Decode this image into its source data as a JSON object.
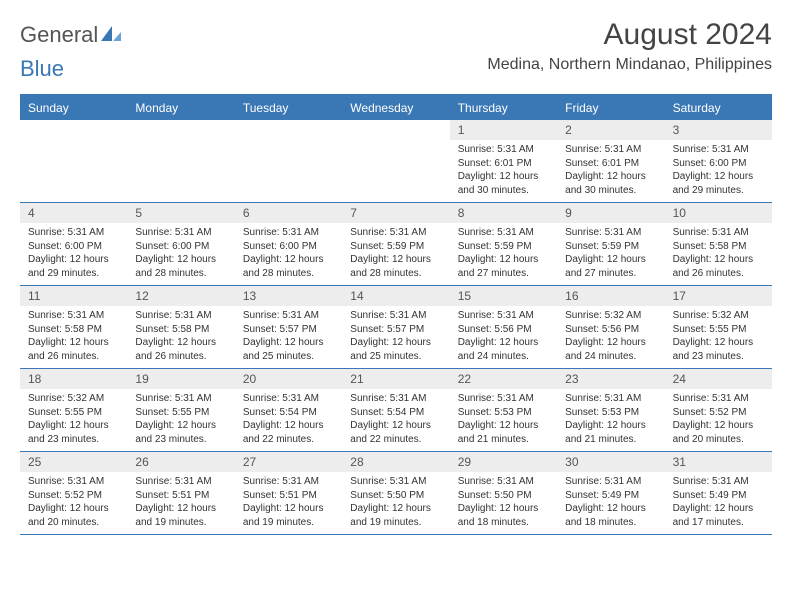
{
  "logo": {
    "word1": "General",
    "word2": "Blue"
  },
  "title": "August 2024",
  "location": "Medina, Northern Mindanao, Philippines",
  "days_of_week": [
    "Sunday",
    "Monday",
    "Tuesday",
    "Wednesday",
    "Thursday",
    "Friday",
    "Saturday"
  ],
  "colors": {
    "accent": "#3a78b5",
    "header_text": "#ffffff",
    "daynum_bg": "#ededed",
    "body_text": "#333333"
  },
  "weeks": [
    [
      {
        "empty": true
      },
      {
        "empty": true
      },
      {
        "empty": true
      },
      {
        "empty": true
      },
      {
        "day": "1",
        "sunrise": "Sunrise: 5:31 AM",
        "sunset": "Sunset: 6:01 PM",
        "daylight": "Daylight: 12 hours and 30 minutes."
      },
      {
        "day": "2",
        "sunrise": "Sunrise: 5:31 AM",
        "sunset": "Sunset: 6:01 PM",
        "daylight": "Daylight: 12 hours and 30 minutes."
      },
      {
        "day": "3",
        "sunrise": "Sunrise: 5:31 AM",
        "sunset": "Sunset: 6:00 PM",
        "daylight": "Daylight: 12 hours and 29 minutes."
      }
    ],
    [
      {
        "day": "4",
        "sunrise": "Sunrise: 5:31 AM",
        "sunset": "Sunset: 6:00 PM",
        "daylight": "Daylight: 12 hours and 29 minutes."
      },
      {
        "day": "5",
        "sunrise": "Sunrise: 5:31 AM",
        "sunset": "Sunset: 6:00 PM",
        "daylight": "Daylight: 12 hours and 28 minutes."
      },
      {
        "day": "6",
        "sunrise": "Sunrise: 5:31 AM",
        "sunset": "Sunset: 6:00 PM",
        "daylight": "Daylight: 12 hours and 28 minutes."
      },
      {
        "day": "7",
        "sunrise": "Sunrise: 5:31 AM",
        "sunset": "Sunset: 5:59 PM",
        "daylight": "Daylight: 12 hours and 28 minutes."
      },
      {
        "day": "8",
        "sunrise": "Sunrise: 5:31 AM",
        "sunset": "Sunset: 5:59 PM",
        "daylight": "Daylight: 12 hours and 27 minutes."
      },
      {
        "day": "9",
        "sunrise": "Sunrise: 5:31 AM",
        "sunset": "Sunset: 5:59 PM",
        "daylight": "Daylight: 12 hours and 27 minutes."
      },
      {
        "day": "10",
        "sunrise": "Sunrise: 5:31 AM",
        "sunset": "Sunset: 5:58 PM",
        "daylight": "Daylight: 12 hours and 26 minutes."
      }
    ],
    [
      {
        "day": "11",
        "sunrise": "Sunrise: 5:31 AM",
        "sunset": "Sunset: 5:58 PM",
        "daylight": "Daylight: 12 hours and 26 minutes."
      },
      {
        "day": "12",
        "sunrise": "Sunrise: 5:31 AM",
        "sunset": "Sunset: 5:58 PM",
        "daylight": "Daylight: 12 hours and 26 minutes."
      },
      {
        "day": "13",
        "sunrise": "Sunrise: 5:31 AM",
        "sunset": "Sunset: 5:57 PM",
        "daylight": "Daylight: 12 hours and 25 minutes."
      },
      {
        "day": "14",
        "sunrise": "Sunrise: 5:31 AM",
        "sunset": "Sunset: 5:57 PM",
        "daylight": "Daylight: 12 hours and 25 minutes."
      },
      {
        "day": "15",
        "sunrise": "Sunrise: 5:31 AM",
        "sunset": "Sunset: 5:56 PM",
        "daylight": "Daylight: 12 hours and 24 minutes."
      },
      {
        "day": "16",
        "sunrise": "Sunrise: 5:32 AM",
        "sunset": "Sunset: 5:56 PM",
        "daylight": "Daylight: 12 hours and 24 minutes."
      },
      {
        "day": "17",
        "sunrise": "Sunrise: 5:32 AM",
        "sunset": "Sunset: 5:55 PM",
        "daylight": "Daylight: 12 hours and 23 minutes."
      }
    ],
    [
      {
        "day": "18",
        "sunrise": "Sunrise: 5:32 AM",
        "sunset": "Sunset: 5:55 PM",
        "daylight": "Daylight: 12 hours and 23 minutes."
      },
      {
        "day": "19",
        "sunrise": "Sunrise: 5:31 AM",
        "sunset": "Sunset: 5:55 PM",
        "daylight": "Daylight: 12 hours and 23 minutes."
      },
      {
        "day": "20",
        "sunrise": "Sunrise: 5:31 AM",
        "sunset": "Sunset: 5:54 PM",
        "daylight": "Daylight: 12 hours and 22 minutes."
      },
      {
        "day": "21",
        "sunrise": "Sunrise: 5:31 AM",
        "sunset": "Sunset: 5:54 PM",
        "daylight": "Daylight: 12 hours and 22 minutes."
      },
      {
        "day": "22",
        "sunrise": "Sunrise: 5:31 AM",
        "sunset": "Sunset: 5:53 PM",
        "daylight": "Daylight: 12 hours and 21 minutes."
      },
      {
        "day": "23",
        "sunrise": "Sunrise: 5:31 AM",
        "sunset": "Sunset: 5:53 PM",
        "daylight": "Daylight: 12 hours and 21 minutes."
      },
      {
        "day": "24",
        "sunrise": "Sunrise: 5:31 AM",
        "sunset": "Sunset: 5:52 PM",
        "daylight": "Daylight: 12 hours and 20 minutes."
      }
    ],
    [
      {
        "day": "25",
        "sunrise": "Sunrise: 5:31 AM",
        "sunset": "Sunset: 5:52 PM",
        "daylight": "Daylight: 12 hours and 20 minutes."
      },
      {
        "day": "26",
        "sunrise": "Sunrise: 5:31 AM",
        "sunset": "Sunset: 5:51 PM",
        "daylight": "Daylight: 12 hours and 19 minutes."
      },
      {
        "day": "27",
        "sunrise": "Sunrise: 5:31 AM",
        "sunset": "Sunset: 5:51 PM",
        "daylight": "Daylight: 12 hours and 19 minutes."
      },
      {
        "day": "28",
        "sunrise": "Sunrise: 5:31 AM",
        "sunset": "Sunset: 5:50 PM",
        "daylight": "Daylight: 12 hours and 19 minutes."
      },
      {
        "day": "29",
        "sunrise": "Sunrise: 5:31 AM",
        "sunset": "Sunset: 5:50 PM",
        "daylight": "Daylight: 12 hours and 18 minutes."
      },
      {
        "day": "30",
        "sunrise": "Sunrise: 5:31 AM",
        "sunset": "Sunset: 5:49 PM",
        "daylight": "Daylight: 12 hours and 18 minutes."
      },
      {
        "day": "31",
        "sunrise": "Sunrise: 5:31 AM",
        "sunset": "Sunset: 5:49 PM",
        "daylight": "Daylight: 12 hours and 17 minutes."
      }
    ]
  ]
}
